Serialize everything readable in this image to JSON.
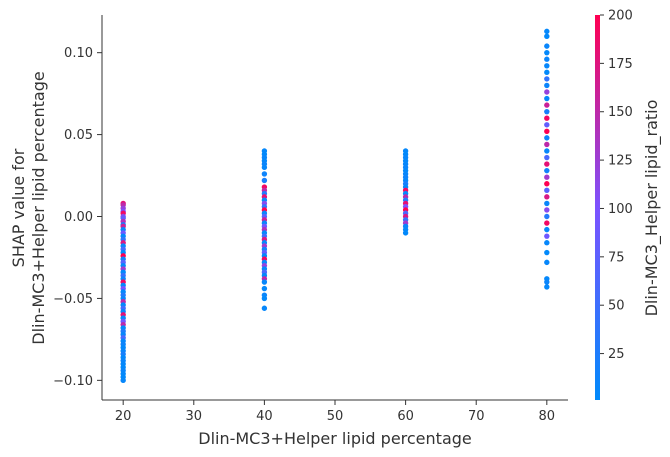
{
  "chart_data": {
    "type": "scatter",
    "title": "",
    "xlabel": "Dlin-MC3+Helper lipid percentage",
    "ylabel_line1": "SHAP value for",
    "ylabel_line2": "Dlin-MC3+Helper lipid percentage",
    "xlim": [
      17,
      83
    ],
    "ylim": [
      -0.112,
      0.123
    ],
    "x_ticks": [
      "20",
      "30",
      "40",
      "50",
      "60",
      "70",
      "80"
    ],
    "y_ticks": [
      "−0.10",
      "−0.05",
      "0.00",
      "0.05",
      "0.10"
    ],
    "colorbar": {
      "label": "Dlin-MC3_Helper lipid_ratio",
      "range": [
        1,
        200
      ],
      "ticks": [
        "25",
        "50",
        "75",
        "100",
        "125",
        "150",
        "175",
        "200"
      ],
      "color_low": "#008afb",
      "color_mid": "#7c52ff",
      "color_high": "#ff0052"
    },
    "groups": [
      {
        "x": 20,
        "y_min": -0.1,
        "y_max": 0.008
      },
      {
        "x": 40,
        "y_min": -0.056,
        "y_max": 0.04
      },
      {
        "x": 60,
        "y_min": -0.01,
        "y_max": 0.04
      },
      {
        "x": 80,
        "y_min": -0.043,
        "y_max": 0.113
      }
    ],
    "points": [
      [
        20,
        0.008,
        180
      ],
      [
        20,
        0.007,
        150
      ],
      [
        20,
        0.005,
        120
      ],
      [
        20,
        0.003,
        100
      ],
      [
        20,
        0.002,
        190
      ],
      [
        20,
        0.0,
        110
      ],
      [
        20,
        -0.001,
        80
      ],
      [
        20,
        -0.003,
        140
      ],
      [
        20,
        -0.005,
        20
      ],
      [
        20,
        -0.006,
        160
      ],
      [
        20,
        -0.008,
        10
      ],
      [
        20,
        -0.01,
        90
      ],
      [
        20,
        -0.012,
        5
      ],
      [
        20,
        -0.014,
        40
      ],
      [
        20,
        -0.016,
        170
      ],
      [
        20,
        -0.018,
        8
      ],
      [
        20,
        -0.02,
        60
      ],
      [
        20,
        -0.022,
        3
      ],
      [
        20,
        -0.024,
        200
      ],
      [
        20,
        -0.026,
        15
      ],
      [
        20,
        -0.028,
        70
      ],
      [
        20,
        -0.03,
        5
      ],
      [
        20,
        -0.032,
        130
      ],
      [
        20,
        -0.034,
        2
      ],
      [
        20,
        -0.036,
        45
      ],
      [
        20,
        -0.038,
        12
      ],
      [
        20,
        -0.04,
        190
      ],
      [
        20,
        -0.042,
        6
      ],
      [
        20,
        -0.044,
        100
      ],
      [
        20,
        -0.046,
        4
      ],
      [
        20,
        -0.048,
        30
      ],
      [
        20,
        -0.05,
        9
      ],
      [
        20,
        -0.052,
        150
      ],
      [
        20,
        -0.054,
        3
      ],
      [
        20,
        -0.056,
        55
      ],
      [
        20,
        -0.058,
        11
      ],
      [
        20,
        -0.06,
        180
      ],
      [
        20,
        -0.062,
        7
      ],
      [
        20,
        -0.064,
        90
      ],
      [
        20,
        -0.066,
        150
      ],
      [
        20,
        -0.068,
        4
      ],
      [
        20,
        -0.07,
        25
      ],
      [
        20,
        -0.072,
        8
      ],
      [
        20,
        -0.074,
        60
      ],
      [
        20,
        -0.076,
        5
      ],
      [
        20,
        -0.078,
        12
      ],
      [
        20,
        -0.08,
        3
      ],
      [
        20,
        -0.082,
        8
      ],
      [
        20,
        -0.084,
        20
      ],
      [
        20,
        -0.086,
        4
      ],
      [
        20,
        -0.088,
        10
      ],
      [
        20,
        -0.09,
        6
      ],
      [
        20,
        -0.092,
        3
      ],
      [
        20,
        -0.094,
        9
      ],
      [
        20,
        -0.096,
        5
      ],
      [
        20,
        -0.098,
        2
      ],
      [
        20,
        -0.1,
        7
      ],
      [
        40,
        0.04,
        5
      ],
      [
        40,
        0.038,
        3
      ],
      [
        40,
        0.036,
        8
      ],
      [
        40,
        0.034,
        4
      ],
      [
        40,
        0.032,
        10
      ],
      [
        40,
        0.03,
        6
      ],
      [
        40,
        0.026,
        12
      ],
      [
        40,
        0.022,
        20
      ],
      [
        40,
        0.018,
        190
      ],
      [
        40,
        0.016,
        150
      ],
      [
        40,
        0.014,
        30
      ],
      [
        40,
        0.012,
        180
      ],
      [
        40,
        0.01,
        5
      ],
      [
        40,
        0.008,
        110
      ],
      [
        40,
        0.006,
        40
      ],
      [
        40,
        0.004,
        200
      ],
      [
        40,
        0.002,
        8
      ],
      [
        40,
        0.0,
        70
      ],
      [
        40,
        -0.002,
        160
      ],
      [
        40,
        -0.004,
        10
      ],
      [
        40,
        -0.006,
        90
      ],
      [
        40,
        -0.008,
        140
      ],
      [
        40,
        -0.01,
        4
      ],
      [
        40,
        -0.012,
        50
      ],
      [
        40,
        -0.014,
        170
      ],
      [
        40,
        -0.016,
        6
      ],
      [
        40,
        -0.018,
        130
      ],
      [
        40,
        -0.02,
        15
      ],
      [
        40,
        -0.022,
        80
      ],
      [
        40,
        -0.024,
        3
      ],
      [
        40,
        -0.026,
        190
      ],
      [
        40,
        -0.028,
        9
      ],
      [
        40,
        -0.03,
        120
      ],
      [
        40,
        -0.032,
        5
      ],
      [
        40,
        -0.034,
        60
      ],
      [
        40,
        -0.036,
        2
      ],
      [
        40,
        -0.038,
        150
      ],
      [
        40,
        -0.04,
        7
      ],
      [
        40,
        -0.044,
        4
      ],
      [
        40,
        -0.048,
        8
      ],
      [
        40,
        -0.05,
        3
      ],
      [
        40,
        -0.056,
        6
      ],
      [
        60,
        0.04,
        5
      ],
      [
        60,
        0.038,
        3
      ],
      [
        60,
        0.036,
        8
      ],
      [
        60,
        0.034,
        4
      ],
      [
        60,
        0.032,
        6
      ],
      [
        60,
        0.03,
        10
      ],
      [
        60,
        0.028,
        3
      ],
      [
        60,
        0.026,
        7
      ],
      [
        60,
        0.024,
        12
      ],
      [
        60,
        0.022,
        5
      ],
      [
        60,
        0.02,
        20
      ],
      [
        60,
        0.018,
        4
      ],
      [
        60,
        0.016,
        190
      ],
      [
        60,
        0.014,
        8
      ],
      [
        60,
        0.012,
        150
      ],
      [
        60,
        0.01,
        30
      ],
      [
        60,
        0.008,
        180
      ],
      [
        60,
        0.006,
        100
      ],
      [
        60,
        0.004,
        200
      ],
      [
        60,
        0.002,
        60
      ],
      [
        60,
        0.0,
        170
      ],
      [
        60,
        -0.002,
        40
      ],
      [
        60,
        -0.004,
        130
      ],
      [
        60,
        -0.006,
        9
      ],
      [
        60,
        -0.008,
        5
      ],
      [
        60,
        -0.01,
        3
      ],
      [
        80,
        0.113,
        5
      ],
      [
        80,
        0.11,
        3
      ],
      [
        80,
        0.104,
        8
      ],
      [
        80,
        0.1,
        4
      ],
      [
        80,
        0.096,
        10
      ],
      [
        80,
        0.092,
        6
      ],
      [
        80,
        0.088,
        3
      ],
      [
        80,
        0.084,
        40
      ],
      [
        80,
        0.08,
        9
      ],
      [
        80,
        0.076,
        120
      ],
      [
        80,
        0.072,
        5
      ],
      [
        80,
        0.068,
        160
      ],
      [
        80,
        0.064,
        20
      ],
      [
        80,
        0.06,
        190
      ],
      [
        80,
        0.056,
        80
      ],
      [
        80,
        0.052,
        200
      ],
      [
        80,
        0.048,
        12
      ],
      [
        80,
        0.044,
        150
      ],
      [
        80,
        0.04,
        6
      ],
      [
        80,
        0.036,
        60
      ],
      [
        80,
        0.032,
        180
      ],
      [
        80,
        0.028,
        15
      ],
      [
        80,
        0.024,
        130
      ],
      [
        80,
        0.02,
        200
      ],
      [
        80,
        0.016,
        70
      ],
      [
        80,
        0.012,
        170
      ],
      [
        80,
        0.008,
        8
      ],
      [
        80,
        0.004,
        110
      ],
      [
        80,
        0.0,
        30
      ],
      [
        80,
        -0.004,
        190
      ],
      [
        80,
        -0.008,
        5
      ],
      [
        80,
        -0.012,
        90
      ],
      [
        80,
        -0.016,
        7
      ],
      [
        80,
        -0.022,
        3
      ],
      [
        80,
        -0.028,
        6
      ],
      [
        80,
        -0.038,
        4
      ],
      [
        80,
        -0.04,
        9
      ],
      [
        80,
        -0.043,
        5
      ]
    ]
  }
}
